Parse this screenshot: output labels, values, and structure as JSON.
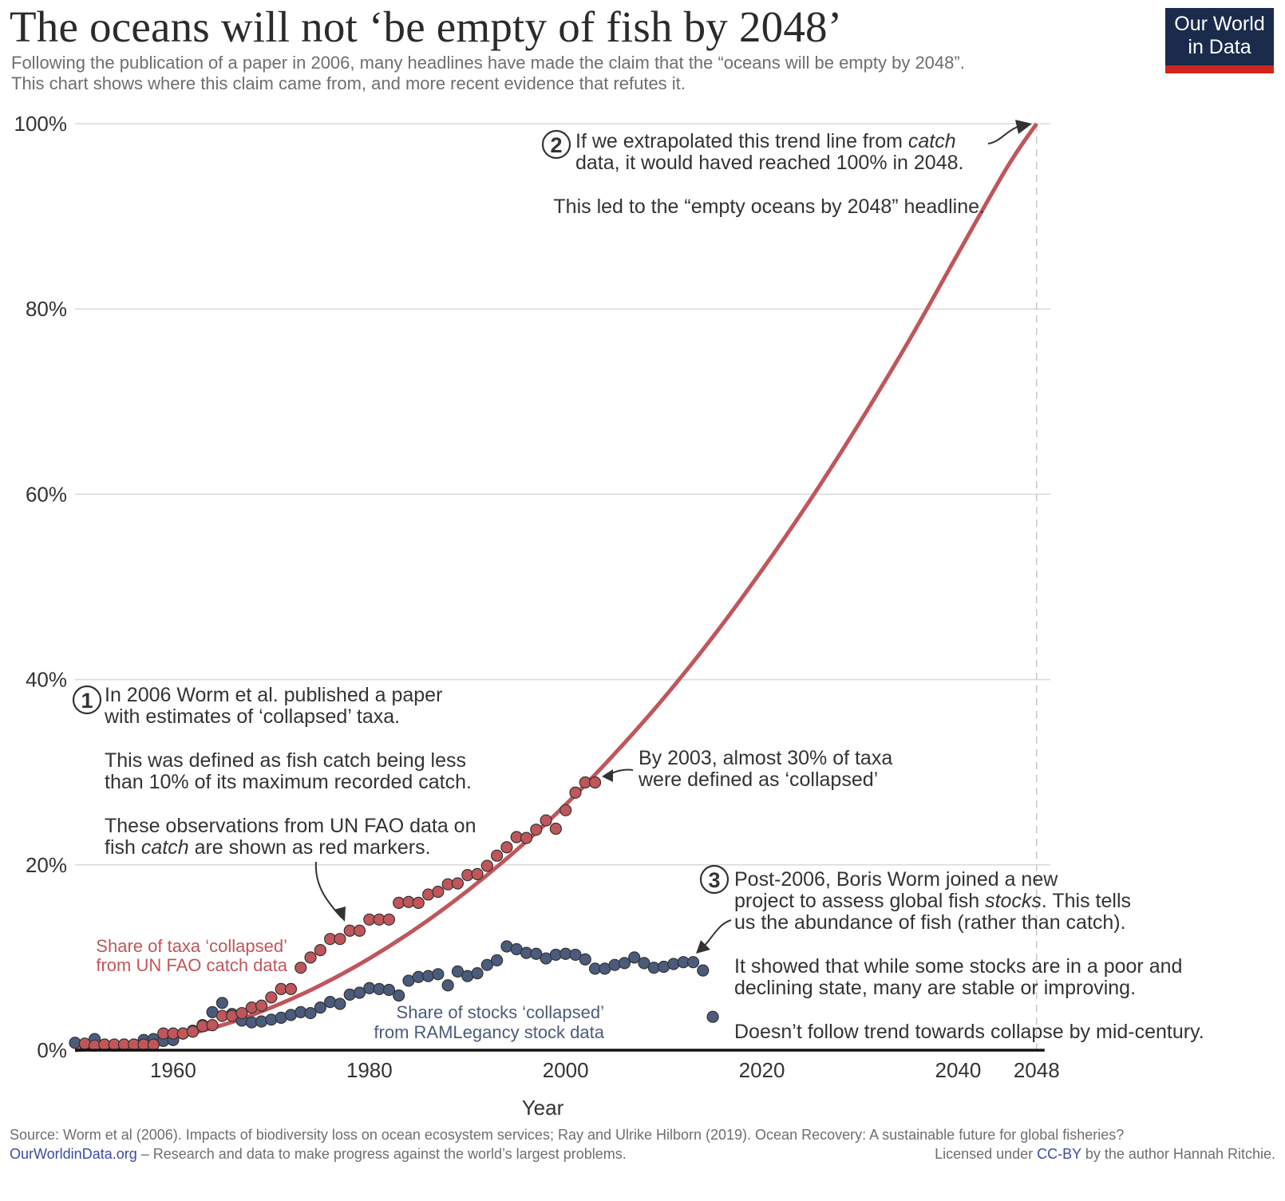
{
  "header": {
    "title": "The oceans will not ‘be empty of fish by 2048’",
    "subtitle_line1": "Following the publication of a paper in 2006, many headlines have made the claim that the “oceans will be empty by 2048”.",
    "subtitle_line2": "This chart shows where this claim came from, and more recent evidence that refutes it.",
    "logo_line1": "Our World",
    "logo_line2": "in Data"
  },
  "colors": {
    "catch_red": "#c0565a",
    "stocks_blue": "#4b5b7b",
    "trend_red": "#c0565a",
    "logo_bg": "#1a2b4c",
    "logo_bar": "#ce261e",
    "link_blue": "#3c4ba4"
  },
  "chart_data": {
    "type": "scatter",
    "title": "The oceans will not ‘be empty of fish by 2048’",
    "xlabel": "Year",
    "ylabel": "",
    "xlim": [
      1950,
      2050
    ],
    "ylim": [
      0,
      100
    ],
    "x_ticks": [
      1960,
      1980,
      2000,
      2020,
      2040,
      2048
    ],
    "x_tick_labels": [
      "1960",
      "1980",
      "2000",
      "2020",
      "2040",
      "2048"
    ],
    "y_ticks": [
      0,
      20,
      40,
      60,
      80,
      100
    ],
    "y_tick_labels": [
      "0%",
      "20%",
      "40%",
      "60%",
      "80%",
      "100%"
    ],
    "grid": "horizontal",
    "reference_line_year": 2048,
    "series": [
      {
        "name": "Share of taxa ‘collapsed’ from UN FAO catch data",
        "label_line1": "Share of taxa ‘collapsed’",
        "label_line2": "from UN FAO catch data",
        "kind": "markers",
        "x": [
          1951,
          1952,
          1953,
          1954,
          1955,
          1956,
          1957,
          1958,
          1959,
          1960,
          1961,
          1962,
          1963,
          1964,
          1965,
          1966,
          1967,
          1968,
          1969,
          1970,
          1971,
          1972,
          1973,
          1974,
          1975,
          1976,
          1977,
          1978,
          1979,
          1980,
          1981,
          1982,
          1983,
          1984,
          1985,
          1986,
          1987,
          1988,
          1989,
          1990,
          1991,
          1992,
          1993,
          1994,
          1995,
          1996,
          1997,
          1998,
          1999,
          2000,
          2001,
          2002,
          2003
        ],
        "values": [
          0.7,
          0.5,
          0.6,
          0.6,
          0.6,
          0.6,
          0.6,
          0.6,
          1.8,
          1.8,
          1.8,
          2.0,
          2.6,
          2.7,
          3.7,
          3.7,
          4.0,
          4.6,
          4.8,
          5.7,
          6.6,
          6.6,
          8.9,
          10.0,
          10.8,
          12.0,
          12.0,
          12.9,
          12.9,
          14.1,
          14.1,
          14.1,
          15.9,
          16.0,
          15.9,
          16.8,
          17.1,
          17.9,
          18.0,
          18.9,
          19.0,
          19.9,
          21.0,
          21.9,
          23.0,
          22.9,
          23.8,
          24.8,
          23.9,
          25.9,
          27.8,
          28.9,
          28.9
        ]
      },
      {
        "name": "Share of stocks ‘collapsed’ from RAMLegancy stock data",
        "label_line1": "Share of stocks ‘collapsed’",
        "label_line2": "from RAMLegancy stock data",
        "kind": "markers",
        "x": [
          1950,
          1951,
          1952,
          1953,
          1954,
          1955,
          1956,
          1957,
          1958,
          1959,
          1960,
          1961,
          1962,
          1963,
          1964,
          1965,
          1966,
          1967,
          1968,
          1969,
          1970,
          1971,
          1972,
          1973,
          1974,
          1975,
          1976,
          1977,
          1978,
          1979,
          1980,
          1981,
          1982,
          1983,
          1984,
          1985,
          1986,
          1987,
          1988,
          1989,
          1990,
          1991,
          1992,
          1993,
          1994,
          1995,
          1996,
          1997,
          1998,
          1999,
          2000,
          2001,
          2002,
          2003,
          2004,
          2005,
          2006,
          2007,
          2008,
          2009,
          2010,
          2011,
          2012,
          2013,
          2014,
          2015
        ],
        "values": [
          0.8,
          0.6,
          1.2,
          0.6,
          0.5,
          0.6,
          0.6,
          1.1,
          1.2,
          1.0,
          1.1,
          1.8,
          2.1,
          2.7,
          4.1,
          5.1,
          3.9,
          3.2,
          3.0,
          3.1,
          3.3,
          3.5,
          3.8,
          4.1,
          4.0,
          4.6,
          5.2,
          5.0,
          6.0,
          6.2,
          6.7,
          6.6,
          6.5,
          5.9,
          7.5,
          7.9,
          8.0,
          8.2,
          7.0,
          8.5,
          8.0,
          8.3,
          9.2,
          9.7,
          11.2,
          10.9,
          10.5,
          10.4,
          9.9,
          10.3,
          10.4,
          10.3,
          9.8,
          8.8,
          8.8,
          9.2,
          9.4,
          10.0,
          9.4,
          8.9,
          9.0,
          9.3,
          9.5,
          9.5,
          8.6,
          3.6
        ]
      },
      {
        "name": "Extrapolated catch trend line",
        "kind": "line",
        "description": "Exponential-like trend from ~0% in 1950 reaching 100% in 2048",
        "x": [
          1950,
          1955,
          1960,
          1965,
          1970,
          1975,
          1980,
          1985,
          1990,
          1995,
          2000,
          2005,
          2010,
          2015,
          2020,
          2025,
          2030,
          2035,
          2040,
          2045,
          2048
        ],
        "values": [
          0,
          0.6,
          1.4,
          2.7,
          4.6,
          7.0,
          9.9,
          13.3,
          17.2,
          21.6,
          26.5,
          32.0,
          38.0,
          44.6,
          51.8,
          59.5,
          67.8,
          76.6,
          86.0,
          95.3,
          100
        ]
      }
    ],
    "annotations": [
      {
        "number": "1",
        "lines": [
          "In 2006 Worm et al. published a paper",
          "with estimates of ‘collapsed’ taxa.",
          "",
          "This was defined as fish catch being less",
          "than 10% of its maximum recorded catch.",
          "",
          "These observations from UN FAO data on",
          "fish catch are shown as red markers."
        ]
      },
      {
        "number": "2",
        "lines": [
          "If we extrapolated this trend line from catch",
          "data, it would haved reached 100% in 2048.",
          "",
          "This led to the “empty oceans by 2048” headline."
        ]
      },
      {
        "number": "3",
        "lines": [
          "Post-2006, Boris Worm joined a new",
          "project to assess global fish stocks. This tells",
          "us the abundance of fish (rather than catch).",
          "",
          "It showed that while some stocks are in a poor and",
          "declining state, many are stable or improving.",
          "",
          "Doesn’t follow trend towards collapse by mid-century."
        ]
      },
      {
        "number": "",
        "lines": [
          "By 2003, almost 30% of taxa",
          "were defined as ‘collapsed’"
        ]
      }
    ]
  },
  "annotation_text": {
    "a1_l1": "In 2006 Worm et al. published a paper",
    "a1_l2": "with estimates of ‘collapsed’ taxa.",
    "a1_l3": "This was defined as fish catch being less",
    "a1_l4": "than 10% of its maximum recorded catch.",
    "a1_l5": "These observations from UN FAO data on",
    "a1_l6_pre": "fish ",
    "a1_l6_em": "catch",
    "a1_l6_post": " are shown as red markers.",
    "a2_l1_pre": "If we extrapolated this trend line from ",
    "a2_l1_em": "catch",
    "a2_l2": "data, it would haved reached 100% in 2048.",
    "a2_l3": "This led to the “empty oceans by 2048” headline.",
    "a3_l1": "Post-2006, Boris Worm joined a new",
    "a3_l2_pre": "project to assess global fish ",
    "a3_l2_em": "stocks",
    "a3_l2_post": ". This tells",
    "a3_l3": "us the abundance of fish (rather than catch).",
    "a3_l4": "It showed that while some stocks are in a poor and",
    "a3_l5": "declining state, many are stable or improving.",
    "a3_l6": "Doesn’t follow trend towards collapse by mid-century.",
    "a4_l1": "By 2003, almost 30% of taxa",
    "a4_l2": "were defined as ‘collapsed’",
    "num1": "1",
    "num2": "2",
    "num3": "3"
  },
  "footer": {
    "source": "Source: Worm et al (2006). Impacts of biodiversity loss on ocean ecosystem services;  Ray and Ulrike Hilborn (2019). Ocean Recovery: A sustainable future for global fisheries?",
    "site_link": "OurWorldinData.org",
    "site_tagline": " – Research and data to make progress against the world’s largest problems.",
    "license_pre": "Licensed under ",
    "license_link": "CC-BY",
    "license_post": " by the author Hannah Ritchie."
  }
}
